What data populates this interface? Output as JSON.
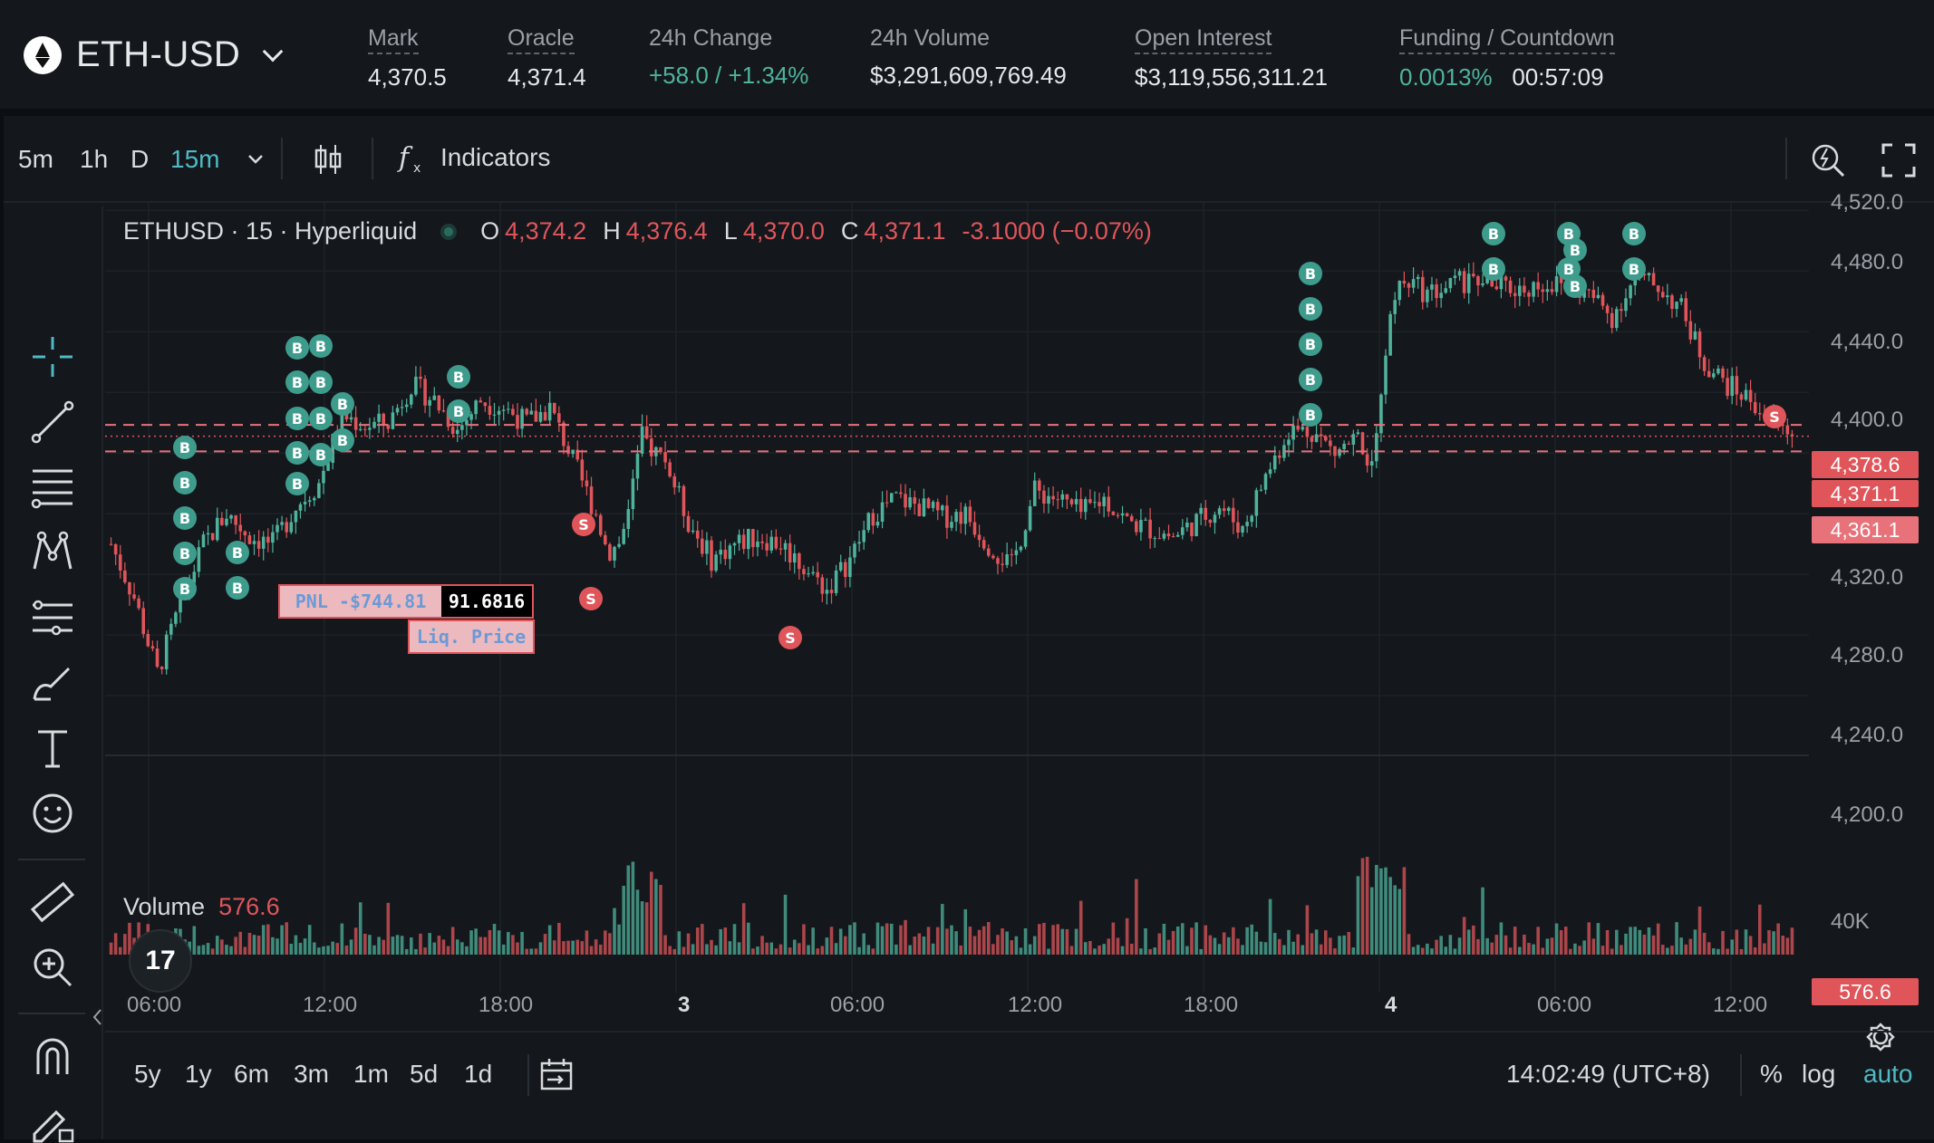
{
  "market": {
    "pair": "ETH-USD",
    "stats": [
      {
        "label": "Mark",
        "value": "4,370.5"
      },
      {
        "label": "Oracle",
        "value": "4,371.4"
      },
      {
        "label": "24h Change",
        "value": "+58.0 / +1.34%"
      },
      {
        "label": "24h Volume",
        "value": "$3,291,609,769.49"
      },
      {
        "label": "Open Interest",
        "value": "$3,119,556,311.21"
      },
      {
        "label": "Funding / Countdown",
        "value": "0.0013%",
        "value2": "00:57:09"
      }
    ]
  },
  "toolbar": {
    "timeframes": [
      "5m",
      "1h",
      "D",
      "15m"
    ],
    "active_timeframe": "15m",
    "indicators_label": "Indicators"
  },
  "legend": {
    "symbol": "ETHUSD · 15 · Hyperliquid",
    "o_label": "O",
    "o": "4,374.2",
    "h_label": "H",
    "h": "4,376.4",
    "l_label": "L",
    "l": "4,370.0",
    "c_label": "C",
    "c": "4,371.1",
    "change": "-3.1000 (−0.07%)"
  },
  "volume": {
    "label": "Volume",
    "value": "576.6",
    "axis_label": "40K"
  },
  "position": {
    "pnl": "PNL -$744.81",
    "qty": "91.6816",
    "liq_label": "Liq. Price"
  },
  "price_tags": {
    "entry": "4,378.6",
    "last": "4,371.1",
    "liq": "4,361.1",
    "volume": "576.6"
  },
  "trade_markers": {
    "buy": "B",
    "sell": "S"
  },
  "chart_data": {
    "type": "candlestick",
    "title": "ETHUSD · 15 · Hyperliquid",
    "y_ticks": [
      "4,520.0",
      "4,480.0",
      "4,440.0",
      "4,400.0",
      "4,320.0",
      "4,280.0",
      "4,240.0",
      "4,200.0"
    ],
    "ylim": [
      4175,
      4525
    ],
    "x_ticks": [
      "06:00",
      "12:00",
      "18:00",
      "3",
      "06:00",
      "12:00",
      "18:00",
      "4",
      "06:00",
      "12:00"
    ],
    "close_path": [
      [
        0,
        4300
      ],
      [
        10,
        4265
      ],
      [
        20,
        4215
      ],
      [
        30,
        4260
      ],
      [
        40,
        4300
      ],
      [
        50,
        4320
      ],
      [
        60,
        4305
      ],
      [
        70,
        4300
      ],
      [
        80,
        4325
      ],
      [
        90,
        4340
      ],
      [
        100,
        4385
      ],
      [
        110,
        4378
      ],
      [
        120,
        4380
      ],
      [
        130,
        4405
      ],
      [
        140,
        4395
      ],
      [
        150,
        4375
      ],
      [
        160,
        4395
      ],
      [
        170,
        4390
      ],
      [
        180,
        4380
      ],
      [
        190,
        4390
      ],
      [
        200,
        4355
      ],
      [
        210,
        4320
      ],
      [
        215,
        4295
      ],
      [
        220,
        4300
      ],
      [
        230,
        4370
      ],
      [
        240,
        4355
      ],
      [
        250,
        4315
      ],
      [
        260,
        4290
      ],
      [
        270,
        4300
      ],
      [
        280,
        4305
      ],
      [
        290,
        4300
      ],
      [
        300,
        4285
      ],
      [
        310,
        4270
      ],
      [
        320,
        4290
      ],
      [
        330,
        4320
      ],
      [
        340,
        4330
      ],
      [
        350,
        4325
      ],
      [
        360,
        4318
      ],
      [
        370,
        4320
      ],
      [
        380,
        4300
      ],
      [
        390,
        4285
      ],
      [
        400,
        4335
      ],
      [
        410,
        4330
      ],
      [
        420,
        4320
      ],
      [
        430,
        4330
      ],
      [
        440,
        4315
      ],
      [
        450,
        4310
      ],
      [
        460,
        4305
      ],
      [
        470,
        4315
      ],
      [
        480,
        4325
      ],
      [
        490,
        4310
      ],
      [
        500,
        4345
      ],
      [
        510,
        4375
      ],
      [
        520,
        4375
      ],
      [
        530,
        4360
      ],
      [
        540,
        4370
      ],
      [
        545,
        4350
      ],
      [
        550,
        4400
      ],
      [
        555,
        4460
      ],
      [
        560,
        4475
      ],
      [
        570,
        4465
      ],
      [
        580,
        4470
      ],
      [
        590,
        4475
      ],
      [
        600,
        4470
      ],
      [
        610,
        4468
      ],
      [
        620,
        4472
      ],
      [
        630,
        4470
      ],
      [
        640,
        4465
      ],
      [
        650,
        4450
      ],
      [
        660,
        4475
      ],
      [
        670,
        4470
      ],
      [
        680,
        4455
      ],
      [
        690,
        4420
      ],
      [
        700,
        4405
      ],
      [
        710,
        4395
      ],
      [
        720,
        4380
      ],
      [
        730,
        4371
      ]
    ],
    "volume_peaks": [
      41000,
      38000,
      35000,
      30000
    ],
    "buy_markers": 34,
    "sell_markers": 4
  },
  "bottom": {
    "ranges": [
      "5y",
      "1y",
      "6m",
      "3m",
      "1m",
      "5d",
      "1d"
    ],
    "time": "14:02:49 (UTC+8)",
    "pct": "%",
    "log": "log",
    "auto": "auto"
  },
  "colors": {
    "up": "#4fb39c",
    "down": "#e0555a",
    "accent": "#4fb9c4",
    "bg": "#14181d"
  }
}
